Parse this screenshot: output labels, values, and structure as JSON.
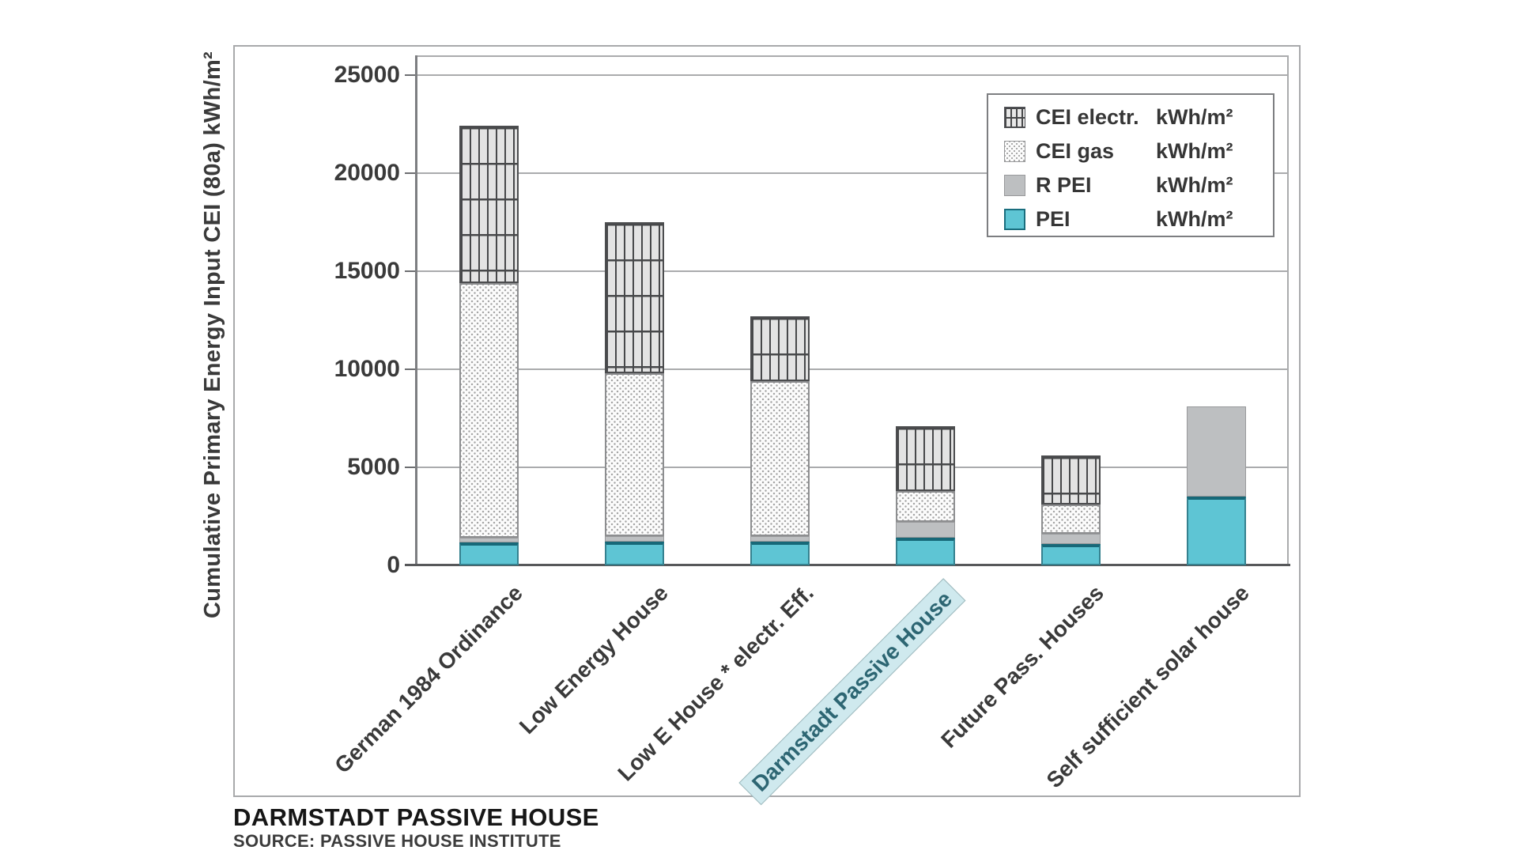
{
  "figure": {
    "y_axis_title": "Cumulative Primary Energy Input CEI (80a) kWh/m²",
    "caption_title": "DARMSTADT PASSIVE HOUSE",
    "caption_source": "SOURCE: PASSIVE HOUSE INSTITUTE"
  },
  "legend": {
    "items": [
      {
        "label": "CEI electr.",
        "unit": "kWh/m²",
        "style": "electr"
      },
      {
        "label": "CEI gas",
        "unit": "kWh/m²",
        "style": "gas"
      },
      {
        "label": "R PEI",
        "unit": "kWh/m²",
        "style": "rpei"
      },
      {
        "label": "PEI",
        "unit": "kWh/m²",
        "style": "pei"
      }
    ]
  },
  "chart_data": {
    "type": "bar",
    "stacked": true,
    "title": "",
    "xlabel": "",
    "ylabel": "Cumulative Primary Energy Input CEI (80a) kWh/m²",
    "ylim": [
      0,
      25000
    ],
    "ytick_interval": 5000,
    "ytick_labels": [
      "0",
      "5000",
      "10000",
      "15000",
      "20000",
      "25000"
    ],
    "grid": true,
    "legend_position": "top-right",
    "categories": [
      "German 1984 Ordinance",
      "Low Energy House",
      "Low E House * electr. Eff.",
      "Darmstadt Passive House",
      "Future Pass. Houses",
      "Self sufficient solar house"
    ],
    "highlighted_category": "Darmstadt Passive House",
    "series": [
      {
        "name": "PEI",
        "unit": "kWh/m²",
        "style": "pei",
        "color": "#5ec5d4",
        "values": [
          1150,
          1200,
          1200,
          1400,
          1100,
          3500
        ]
      },
      {
        "name": "R PEI",
        "unit": "kWh/m²",
        "style": "rpei",
        "color": "#bdbfc1",
        "values": [
          250,
          300,
          300,
          800,
          500,
          4600
        ]
      },
      {
        "name": "CEI gas",
        "unit": "kWh/m²",
        "style": "gas",
        "pattern": "dots",
        "values": [
          13000,
          8300,
          7900,
          1600,
          1500,
          0
        ]
      },
      {
        "name": "CEI electr.",
        "unit": "kWh/m²",
        "style": "electr",
        "pattern": "grid-hatch",
        "values": [
          8000,
          7700,
          3300,
          3300,
          2500,
          0
        ]
      }
    ],
    "stack_totals": [
      22400,
      17500,
      12700,
      7100,
      5600,
      8100
    ]
  }
}
